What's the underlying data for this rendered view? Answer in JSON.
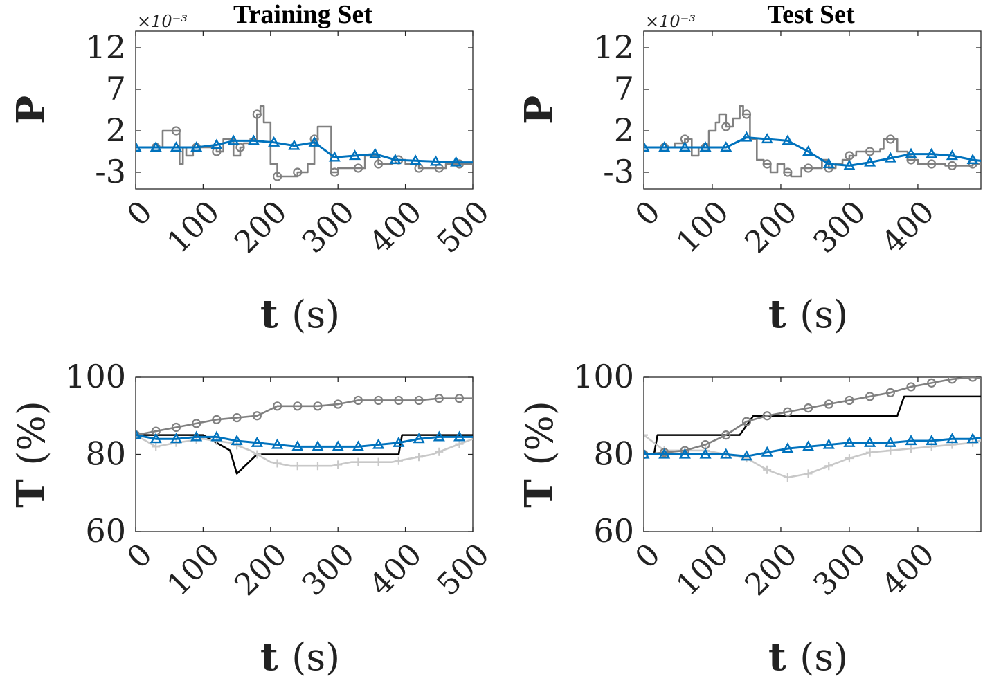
{
  "chart_data": [
    {
      "type": "line",
      "title": "Training Set",
      "xlabel_bold": "t",
      "xlabel_rest": "(s)",
      "ylabel": "P",
      "exponent_label": "×10⁻³",
      "xlim": [
        0,
        500
      ],
      "ylim": [
        -5,
        14
      ],
      "xticks": [
        "0",
        "100",
        "200",
        "300",
        "400",
        "500"
      ],
      "yticks": [
        "-3",
        "2",
        "7",
        "12"
      ],
      "colors": {
        "black": "#000000",
        "dark": "#808080",
        "light": "#c8c8c8",
        "blue": "#0072bd"
      },
      "series": [
        {
          "name": "dark-circles",
          "color": "#808080",
          "marker": "circle",
          "step": true,
          "x": [
            0,
            30,
            40,
            55,
            65,
            70,
            75,
            85,
            100,
            120,
            130,
            145,
            155,
            160,
            170,
            180,
            185,
            190,
            200,
            210,
            220,
            240,
            255,
            265,
            270,
            280,
            290,
            300,
            320,
            340,
            360,
            380,
            400,
            420,
            440,
            460,
            480,
            500
          ],
          "y": [
            0,
            0,
            2,
            2,
            -2,
            0,
            -1,
            0,
            0,
            -0.5,
            1,
            -1,
            0,
            0.5,
            1,
            4,
            5,
            3,
            -2,
            -3.5,
            -3.5,
            -3,
            -2,
            1,
            2.5,
            2.5,
            -3,
            -2.5,
            -2.5,
            -1,
            -2,
            -1.5,
            -2,
            -2.5,
            -2.5,
            -2,
            -2,
            -2
          ]
        },
        {
          "name": "blue-triangles",
          "color": "#0072bd",
          "marker": "triangle",
          "step": false,
          "x": [
            0,
            30,
            60,
            90,
            120,
            145,
            175,
            205,
            235,
            265,
            295,
            325,
            355,
            385,
            415,
            445,
            475,
            500
          ],
          "y": [
            0,
            0,
            0,
            0,
            0.3,
            0.8,
            0.8,
            0.6,
            0.2,
            0.6,
            -1.2,
            -1,
            -0.8,
            -1.5,
            -1.6,
            -1.7,
            -1.8,
            -1.8
          ]
        }
      ],
      "marker_x_dark": [
        30,
        60,
        90,
        120,
        155,
        180,
        210,
        240,
        265,
        295,
        330,
        360,
        390,
        420,
        450,
        480
      ],
      "marker_x_blue": [
        0,
        30,
        60,
        90,
        120,
        145,
        175,
        205,
        235,
        265,
        295,
        325,
        355,
        385,
        415,
        445,
        475
      ]
    },
    {
      "type": "line",
      "title": "Test Set",
      "xlabel_bold": "t",
      "xlabel_rest": "(s)",
      "ylabel": "P",
      "exponent_label": "×10⁻³",
      "xlim": [
        0,
        500
      ],
      "ylim": [
        -5,
        14
      ],
      "xticks": [
        "0",
        "100",
        "200",
        "300",
        "400"
      ],
      "yticks": [
        "-3",
        "2",
        "7",
        "12"
      ],
      "colors": {
        "black": "#000000",
        "dark": "#808080",
        "light": "#c8c8c8",
        "blue": "#0072bd"
      },
      "series": [
        {
          "name": "dark-circles",
          "color": "#808080",
          "marker": "circle",
          "step": true,
          "x": [
            0,
            30,
            45,
            60,
            70,
            80,
            95,
            105,
            110,
            120,
            130,
            140,
            145,
            155,
            165,
            175,
            185,
            195,
            205,
            215,
            230,
            250,
            260,
            270,
            280,
            290,
            300,
            310,
            330,
            345,
            350,
            360,
            370,
            385,
            400,
            420,
            440,
            460,
            480,
            500
          ],
          "y": [
            0,
            0,
            0.5,
            1,
            -1,
            0,
            2,
            3,
            4,
            2.5,
            3.5,
            5,
            4,
            1,
            -1.5,
            -2,
            -3,
            -2,
            -3,
            -3.5,
            -2.5,
            -2.5,
            -1.5,
            -2.5,
            -2,
            -1.5,
            -1,
            -0.5,
            -0.5,
            -0.2,
            1,
            1,
            -0.5,
            -1.5,
            -2,
            -2,
            -2.2,
            -2.2,
            -2,
            -2
          ]
        },
        {
          "name": "blue-triangles",
          "color": "#0072bd",
          "marker": "triangle",
          "step": false,
          "x": [
            0,
            30,
            60,
            90,
            120,
            150,
            180,
            210,
            240,
            270,
            300,
            330,
            360,
            390,
            420,
            450,
            480,
            500
          ],
          "y": [
            0,
            0,
            0,
            0,
            0,
            1.2,
            1,
            0.8,
            -0.5,
            -2,
            -2.2,
            -1.8,
            -1.3,
            -0.8,
            -0.8,
            -1,
            -1.5,
            -1.7
          ]
        }
      ],
      "marker_x_dark": [
        30,
        60,
        90,
        120,
        150,
        180,
        210,
        240,
        270,
        300,
        330,
        360,
        390,
        420,
        450,
        480
      ],
      "marker_x_blue": [
        0,
        30,
        60,
        90,
        120,
        150,
        180,
        210,
        240,
        270,
        300,
        330,
        360,
        390,
        420,
        450,
        480
      ]
    },
    {
      "type": "line",
      "xlabel_bold": "t",
      "xlabel_rest": "(s)",
      "ylabel_bold": "T",
      "ylabel_rest": "(%)",
      "xlim": [
        0,
        500
      ],
      "ylim": [
        60,
        100
      ],
      "xticks": [
        "0",
        "100",
        "200",
        "300",
        "400",
        "500"
      ],
      "yticks": [
        "60",
        "80",
        "100"
      ],
      "series": [
        {
          "name": "black",
          "color": "#000000",
          "marker": "none",
          "x": [
            0,
            100,
            140,
            150,
            180,
            390,
            395,
            500
          ],
          "y": [
            85,
            85,
            81,
            75,
            80,
            80,
            85,
            85
          ]
        },
        {
          "name": "light-plus",
          "color": "#c8c8c8",
          "marker": "plus",
          "x": [
            0,
            30,
            60,
            100,
            140,
            170,
            200,
            230,
            260,
            290,
            320,
            350,
            380,
            410,
            440,
            470,
            500
          ],
          "y": [
            85,
            82,
            83,
            84,
            83,
            81,
            78,
            77,
            77,
            77,
            78,
            78,
            78,
            79,
            80,
            82,
            84
          ]
        },
        {
          "name": "dark-circles",
          "color": "#808080",
          "marker": "circle",
          "x": [
            0,
            30,
            60,
            90,
            120,
            150,
            180,
            210,
            240,
            270,
            300,
            330,
            360,
            390,
            420,
            450,
            480,
            500
          ],
          "y": [
            85,
            86,
            87,
            88,
            89,
            89.5,
            90,
            92.5,
            92.5,
            92.5,
            93,
            94,
            94,
            94,
            94,
            94.5,
            94.5,
            94.5
          ]
        },
        {
          "name": "blue-triangles",
          "color": "#0072bd",
          "marker": "triangle",
          "x": [
            0,
            30,
            60,
            90,
            120,
            150,
            180,
            210,
            240,
            270,
            300,
            330,
            360,
            390,
            420,
            450,
            480,
            500
          ],
          "y": [
            85,
            84,
            84,
            84.5,
            84.5,
            83.5,
            83,
            82.5,
            82,
            82,
            82,
            82,
            82.5,
            83,
            84,
            84.5,
            84.5,
            84.5
          ]
        }
      ],
      "marker_x": [
        0,
        30,
        60,
        90,
        120,
        150,
        180,
        210,
        240,
        270,
        300,
        330,
        360,
        390,
        420,
        450,
        480
      ]
    },
    {
      "type": "line",
      "xlabel_bold": "t",
      "xlabel_rest": "(s)",
      "ylabel_bold": "T",
      "ylabel_rest": "(%)",
      "xlim": [
        0,
        500
      ],
      "ylim": [
        60,
        100
      ],
      "xticks": [
        "0",
        "100",
        "200",
        "300",
        "400"
      ],
      "yticks": [
        "60",
        "80",
        "100"
      ],
      "series": [
        {
          "name": "black",
          "color": "#000000",
          "marker": "none",
          "x": [
            0,
            15,
            20,
            140,
            160,
            370,
            380,
            500
          ],
          "y": [
            80,
            80,
            85,
            85,
            90,
            90,
            95,
            95
          ]
        },
        {
          "name": "light-plus",
          "color": "#c8c8c8",
          "marker": "plus",
          "x": [
            0,
            30,
            60,
            90,
            120,
            150,
            180,
            210,
            240,
            270,
            300,
            330,
            360,
            390,
            420,
            450,
            480,
            500
          ],
          "y": [
            85,
            81,
            81,
            81,
            80,
            79,
            76,
            74,
            75,
            77,
            79,
            80.5,
            81,
            81.5,
            82,
            82.5,
            83,
            84
          ]
        },
        {
          "name": "dark-circles",
          "color": "#808080",
          "marker": "circle",
          "x": [
            0,
            30,
            60,
            90,
            120,
            150,
            180,
            210,
            240,
            270,
            300,
            330,
            360,
            390,
            420,
            450,
            480,
            500
          ],
          "y": [
            80,
            80.5,
            81,
            82.5,
            85,
            88.5,
            90,
            91,
            92,
            93,
            94,
            95,
            96,
            97.5,
            98.5,
            99.5,
            100,
            99.5
          ]
        },
        {
          "name": "blue-triangles",
          "color": "#0072bd",
          "marker": "triangle",
          "x": [
            0,
            30,
            60,
            90,
            120,
            150,
            180,
            210,
            240,
            270,
            300,
            330,
            360,
            390,
            420,
            450,
            480,
            500
          ],
          "y": [
            80,
            80,
            80,
            80,
            80,
            79.5,
            80.5,
            81.5,
            82,
            82.5,
            83,
            83,
            83,
            83.5,
            83.5,
            84,
            84,
            84.5
          ]
        }
      ],
      "marker_x": [
        0,
        30,
        60,
        90,
        120,
        150,
        180,
        210,
        240,
        270,
        300,
        330,
        360,
        390,
        420,
        450,
        480
      ]
    }
  ]
}
